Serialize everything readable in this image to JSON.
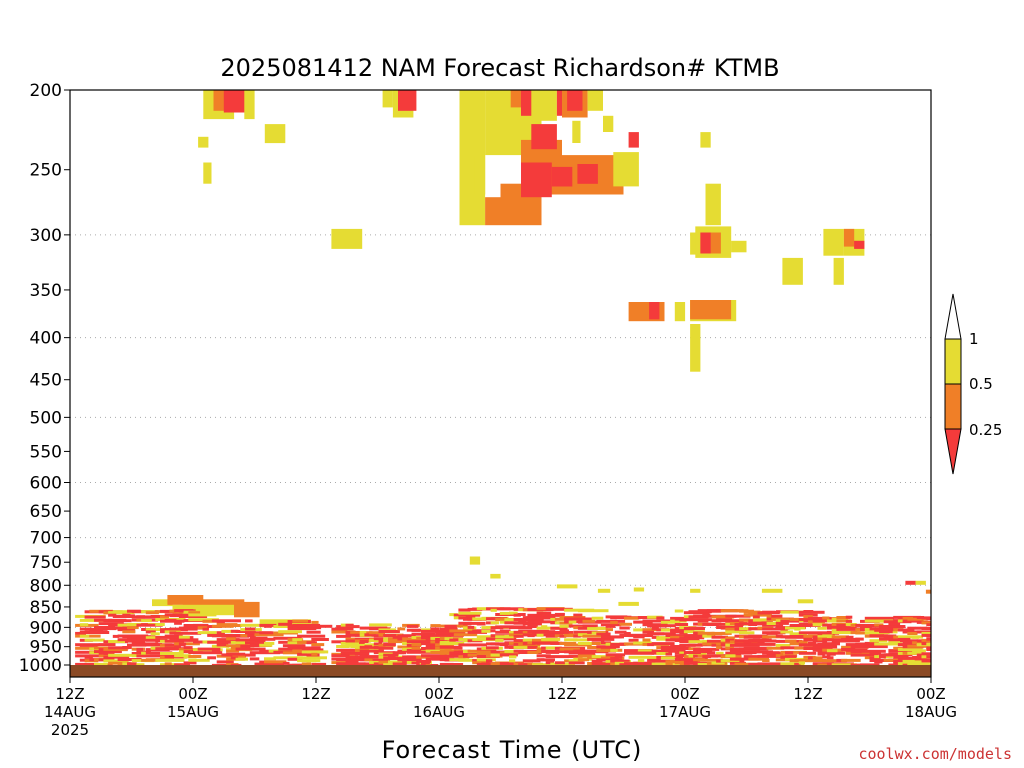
{
  "chart_data": {
    "type": "heatmap",
    "title": "2025081412 NAM Forecast Richardson# KTMB",
    "xlabel": "Forecast Time (UTC)",
    "ylabel": "",
    "y_axis": {
      "scale": "log-pressure",
      "unit": "hPa",
      "range": [
        1000,
        200
      ],
      "tick_labels": [
        "200",
        "250",
        "300",
        "350",
        "400",
        "450",
        "500",
        "550",
        "600",
        "650",
        "700",
        "750",
        "800",
        "850",
        "900",
        "950",
        "1000"
      ],
      "gridlines_dotted_at": [
        300,
        400,
        500,
        600,
        700,
        800,
        900
      ]
    },
    "x_axis": {
      "range_hours": [
        0,
        84
      ],
      "ticks": [
        {
          "hour": 0,
          "line1": "12Z",
          "line2": "14AUG",
          "line3": "2025"
        },
        {
          "hour": 12,
          "line1": "00Z",
          "line2": "15AUG",
          "line3": ""
        },
        {
          "hour": 24,
          "line1": "12Z",
          "line2": "",
          "line3": ""
        },
        {
          "hour": 36,
          "line1": "00Z",
          "line2": "16AUG",
          "line3": ""
        },
        {
          "hour": 48,
          "line1": "12Z",
          "line2": "",
          "line3": ""
        },
        {
          "hour": 60,
          "line1": "00Z",
          "line2": "17AUG",
          "line3": ""
        },
        {
          "hour": 72,
          "line1": "12Z",
          "line2": "",
          "line3": ""
        },
        {
          "hour": 84,
          "line1": "00Z",
          "line2": "18AUG",
          "line3": ""
        }
      ]
    },
    "colorbar": {
      "levels": [
        {
          "label": "1",
          "color": "#ffffff",
          "range": "> 1"
        },
        {
          "label": "0.5",
          "color": "#e5dc33",
          "range": "0.5-1"
        },
        {
          "label": "0.25",
          "color": "#f07f27",
          "range": "0.25-0.5"
        },
        {
          "label": "",
          "color": "#f43b3b",
          "range": "< 0.25"
        }
      ]
    },
    "ground_color": "#8b4a25",
    "regions": [
      {
        "h0": 13.0,
        "h1": 16.0,
        "p_top": 200,
        "p_bot": 217,
        "cat": "y"
      },
      {
        "h0": 14.0,
        "h1": 17.0,
        "p_top": 200,
        "p_bot": 212,
        "cat": "o"
      },
      {
        "h0": 15.0,
        "h1": 17.5,
        "p_top": 200,
        "p_bot": 213,
        "cat": "r"
      },
      {
        "h0": 17.0,
        "h1": 18.0,
        "p_top": 200,
        "p_bot": 217,
        "cat": "y"
      },
      {
        "h0": 19.0,
        "h1": 21.0,
        "p_top": 220,
        "p_bot": 232,
        "cat": "y"
      },
      {
        "h0": 12.5,
        "h1": 13.5,
        "p_top": 228,
        "p_bot": 235,
        "cat": "y"
      },
      {
        "h0": 13.0,
        "h1": 13.8,
        "p_top": 245,
        "p_bot": 260,
        "cat": "y"
      },
      {
        "h0": 25.5,
        "h1": 28.5,
        "p_top": 295,
        "p_bot": 312,
        "cat": "y"
      },
      {
        "h0": 30.5,
        "h1": 31.5,
        "p_top": 200,
        "p_bot": 210,
        "cat": "y"
      },
      {
        "h0": 31.5,
        "h1": 33.5,
        "p_top": 200,
        "p_bot": 216,
        "cat": "y"
      },
      {
        "h0": 32.0,
        "h1": 33.8,
        "p_top": 200,
        "p_bot": 212,
        "cat": "r"
      },
      {
        "h0": 38.0,
        "h1": 40.5,
        "p_top": 200,
        "p_bot": 292,
        "cat": "y"
      },
      {
        "h0": 40.5,
        "h1": 46.0,
        "p_top": 200,
        "p_bot": 240,
        "cat": "y"
      },
      {
        "h0": 39.5,
        "h1": 40.5,
        "p_top": 240,
        "p_bot": 268,
        "cat": "y"
      },
      {
        "h0": 40.5,
        "h1": 42.0,
        "p_top": 270,
        "p_bot": 292,
        "cat": "o"
      },
      {
        "h0": 42.0,
        "h1": 46.0,
        "p_top": 260,
        "p_bot": 292,
        "cat": "o"
      },
      {
        "h0": 44.0,
        "h1": 48.0,
        "p_top": 230,
        "p_bot": 268,
        "cat": "o"
      },
      {
        "h0": 48.0,
        "h1": 54.0,
        "p_top": 240,
        "p_bot": 268,
        "cat": "o"
      },
      {
        "h0": 44.0,
        "h1": 47.0,
        "p_top": 245,
        "p_bot": 270,
        "cat": "r"
      },
      {
        "h0": 47.0,
        "h1": 49.0,
        "p_top": 248,
        "p_bot": 262,
        "cat": "r"
      },
      {
        "h0": 49.5,
        "h1": 51.5,
        "p_top": 246,
        "p_bot": 260,
        "cat": "r"
      },
      {
        "h0": 45.0,
        "h1": 47.5,
        "p_top": 220,
        "p_bot": 236,
        "cat": "r"
      },
      {
        "h0": 43.0,
        "h1": 44.0,
        "p_top": 200,
        "p_bot": 210,
        "cat": "o"
      },
      {
        "h0": 44.0,
        "h1": 45.0,
        "p_top": 200,
        "p_bot": 215,
        "cat": "r"
      },
      {
        "h0": 46.0,
        "h1": 47.5,
        "p_top": 200,
        "p_bot": 218,
        "cat": "y"
      },
      {
        "h0": 47.5,
        "h1": 48.5,
        "p_top": 200,
        "p_bot": 215,
        "cat": "r"
      },
      {
        "h0": 49.0,
        "h1": 49.8,
        "p_top": 218,
        "p_bot": 232,
        "cat": "y"
      },
      {
        "h0": 48.0,
        "h1": 50.5,
        "p_top": 200,
        "p_bot": 216,
        "cat": "o"
      },
      {
        "h0": 48.5,
        "h1": 50.0,
        "p_top": 200,
        "p_bot": 212,
        "cat": "r"
      },
      {
        "h0": 50.5,
        "h1": 52.0,
        "p_top": 200,
        "p_bot": 212,
        "cat": "y"
      },
      {
        "h0": 52.0,
        "h1": 53.0,
        "p_top": 215,
        "p_bot": 225,
        "cat": "y"
      },
      {
        "h0": 53.0,
        "h1": 55.5,
        "p_top": 238,
        "p_bot": 262,
        "cat": "y"
      },
      {
        "h0": 59.0,
        "h1": 60.0,
        "p_top": 362,
        "p_bot": 382,
        "cat": "y"
      },
      {
        "h0": 54.5,
        "h1": 58.0,
        "p_top": 362,
        "p_bot": 382,
        "cat": "o"
      },
      {
        "h0": 56.5,
        "h1": 57.5,
        "p_top": 362,
        "p_bot": 380,
        "cat": "r"
      },
      {
        "h0": 54.5,
        "h1": 55.5,
        "p_top": 225,
        "p_bot": 235,
        "cat": "r"
      },
      {
        "h0": 60.5,
        "h1": 61.5,
        "p_top": 298,
        "p_bot": 317,
        "cat": "y"
      },
      {
        "h0": 61.0,
        "h1": 64.5,
        "p_top": 293,
        "p_bot": 320,
        "cat": "y"
      },
      {
        "h0": 61.5,
        "h1": 63.5,
        "p_top": 298,
        "p_bot": 316,
        "cat": "o"
      },
      {
        "h0": 61.5,
        "h1": 62.5,
        "p_top": 298,
        "p_bot": 316,
        "cat": "r"
      },
      {
        "h0": 64.5,
        "h1": 66.0,
        "p_top": 305,
        "p_bot": 315,
        "cat": "y"
      },
      {
        "h0": 62.0,
        "h1": 63.5,
        "p_top": 260,
        "p_bot": 292,
        "cat": "y"
      },
      {
        "h0": 61.5,
        "h1": 62.5,
        "p_top": 225,
        "p_bot": 235,
        "cat": "y"
      },
      {
        "h0": 60.5,
        "h1": 61.5,
        "p_top": 385,
        "p_bot": 440,
        "cat": "y"
      },
      {
        "h0": 60.5,
        "h1": 65.0,
        "p_top": 360,
        "p_bot": 382,
        "cat": "y"
      },
      {
        "h0": 60.5,
        "h1": 64.5,
        "p_top": 360,
        "p_bot": 380,
        "cat": "o"
      },
      {
        "h0": 69.5,
        "h1": 71.5,
        "p_top": 320,
        "p_bot": 345,
        "cat": "y"
      },
      {
        "h0": 73.5,
        "h1": 75.5,
        "p_top": 295,
        "p_bot": 318,
        "cat": "y"
      },
      {
        "h0": 75.5,
        "h1": 77.5,
        "p_top": 295,
        "p_bot": 318,
        "cat": "y"
      },
      {
        "h0": 75.5,
        "h1": 76.5,
        "p_top": 295,
        "p_bot": 310,
        "cat": "o"
      },
      {
        "h0": 76.5,
        "h1": 77.5,
        "p_top": 305,
        "p_bot": 312,
        "cat": "r"
      },
      {
        "h0": 74.5,
        "h1": 75.5,
        "p_top": 320,
        "p_bot": 345,
        "cat": "y"
      },
      {
        "h0": 39.0,
        "h1": 40.0,
        "p_top": 738,
        "p_bot": 755,
        "cat": "y"
      },
      {
        "h0": 41.0,
        "h1": 42.0,
        "p_top": 775,
        "p_bot": 785,
        "cat": "y"
      },
      {
        "h0": 8.0,
        "h1": 10.0,
        "p_top": 832,
        "p_bot": 848,
        "cat": "y"
      },
      {
        "h0": 9.5,
        "h1": 13.0,
        "p_top": 822,
        "p_bot": 845,
        "cat": "o"
      },
      {
        "h0": 11.0,
        "h1": 17.0,
        "p_top": 832,
        "p_bot": 858,
        "cat": "o"
      },
      {
        "h0": 16.0,
        "h1": 18.5,
        "p_top": 838,
        "p_bot": 875,
        "cat": "o"
      },
      {
        "h0": 10.0,
        "h1": 16.0,
        "p_top": 845,
        "p_bot": 870,
        "cat": "y"
      },
      {
        "h0": 18.5,
        "h1": 23.5,
        "p_top": 880,
        "p_bot": 900,
        "cat": "y"
      }
    ],
    "hbands": [
      {
        "h0": 0.5,
        "h1": 12.0,
        "p0": 855,
        "p1": 1000,
        "dens": 0.55
      },
      {
        "h0": 12.0,
        "h1": 24.0,
        "p0": 880,
        "p1": 1000,
        "dens": 0.35
      },
      {
        "h0": 25.5,
        "h1": 37.0,
        "p0": 890,
        "p1": 1000,
        "dens": 0.5
      },
      {
        "h0": 37.0,
        "h1": 50.0,
        "p0": 850,
        "p1": 1000,
        "dens": 0.55
      },
      {
        "h0": 50.0,
        "h1": 59.0,
        "p0": 870,
        "p1": 1000,
        "dens": 0.45
      },
      {
        "h0": 59.0,
        "h1": 72.0,
        "p0": 855,
        "p1": 1000,
        "dens": 0.55
      },
      {
        "h0": 72.0,
        "h1": 84.0,
        "p0": 870,
        "p1": 1000,
        "dens": 0.5
      }
    ],
    "speckles": [
      {
        "h": 47.5,
        "p": 798,
        "w": 2.0,
        "cat": "y"
      },
      {
        "h": 51.5,
        "p": 808,
        "w": 1.2,
        "cat": "y"
      },
      {
        "h": 53.5,
        "p": 838,
        "w": 2.0,
        "cat": "y"
      },
      {
        "h": 55.0,
        "p": 805,
        "w": 1.0,
        "cat": "y"
      },
      {
        "h": 60.5,
        "p": 808,
        "w": 1.0,
        "cat": "y"
      },
      {
        "h": 67.5,
        "p": 808,
        "w": 2.0,
        "cat": "y"
      },
      {
        "h": 71.0,
        "p": 832,
        "w": 1.5,
        "cat": "y"
      },
      {
        "h": 81.5,
        "p": 790,
        "w": 1.0,
        "cat": "r"
      },
      {
        "h": 82.5,
        "p": 790,
        "w": 1.0,
        "cat": "y"
      },
      {
        "h": 83.5,
        "p": 810,
        "w": 0.6,
        "cat": "o"
      }
    ]
  },
  "credit": "coolwx.com/models"
}
